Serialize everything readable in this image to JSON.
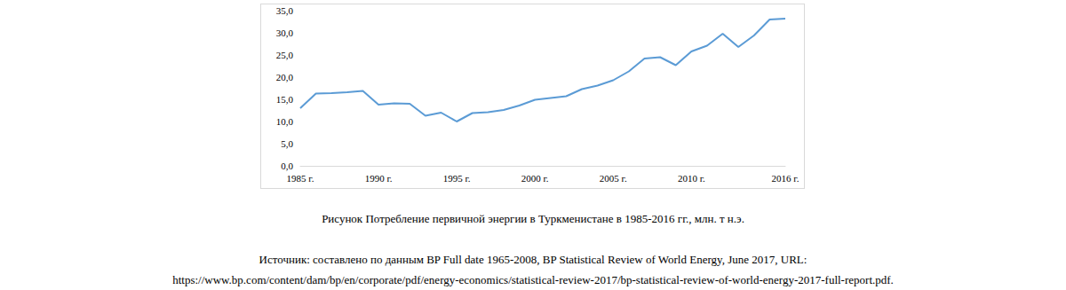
{
  "chart_data": {
    "type": "line",
    "title": "Рисунок Потребление первичной энергии в Туркменистане в 1985-2016 гг., млн. т н.э.",
    "categories": [
      "1985 г.",
      null,
      null,
      null,
      null,
      "1990 г.",
      null,
      null,
      null,
      null,
      "1995 г.",
      null,
      null,
      null,
      null,
      "2000 г.",
      null,
      null,
      null,
      null,
      "2005 г.",
      null,
      null,
      null,
      null,
      "2010 г.",
      null,
      null,
      null,
      null,
      null,
      "2016 г."
    ],
    "values": [
      13.0,
      16.3,
      16.4,
      16.6,
      16.9,
      13.8,
      14.1,
      14.0,
      11.3,
      12.0,
      10.0,
      11.9,
      12.1,
      12.6,
      13.6,
      14.9,
      15.3,
      15.7,
      17.3,
      18.1,
      19.3,
      21.3,
      24.2,
      24.5,
      22.7,
      25.8,
      27.1,
      29.8,
      26.8,
      29.4,
      33.0,
      33.2
    ],
    "color": "#5b9bd5",
    "ylim": [
      0,
      35
    ],
    "yticks": [
      {
        "value": 0,
        "label": "0,0"
      },
      {
        "value": 5,
        "label": "5,0"
      },
      {
        "value": 10,
        "label": "10,0"
      },
      {
        "value": 15,
        "label": "15,0"
      },
      {
        "value": 20,
        "label": "20,0"
      },
      {
        "value": 25,
        "label": "25,0"
      },
      {
        "value": 30,
        "label": "30,0"
      },
      {
        "value": 35,
        "label": "35,0"
      }
    ],
    "grid": false,
    "marker": "none"
  },
  "source": [
    "Источник: составлено по данным BP Full date 1965-2008, BP Statistical Review of World Energy, June 2017, URL:",
    "https://www.bp.com/content/dam/bp/en/corporate/pdf/energy-economics/statistical-review-2017/bp-statistical-review-of-world-energy-2017-full-report.pdf."
  ]
}
